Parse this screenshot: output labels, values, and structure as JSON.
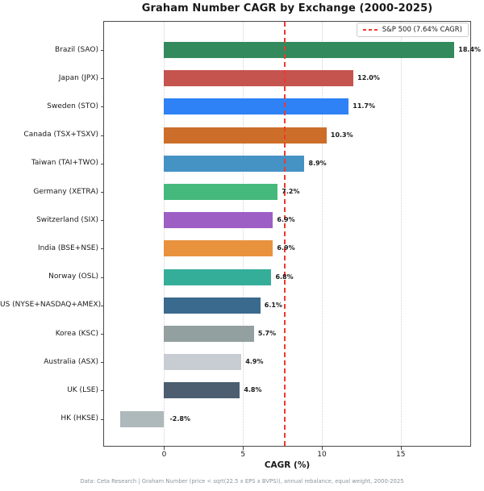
{
  "title": "Graham Number CAGR by Exchange (2000-2025)",
  "footer": "Data: Ceta Research | Graham Number (price < sqrt(22.5 x EPS x BVPS)), annual rebalance, equal weight, 2000-2025",
  "chart_data": {
    "type": "bar",
    "orientation": "horizontal",
    "title": "Graham Number CAGR by Exchange (2000-2025)",
    "xlabel": "CAGR (%)",
    "xlim": [
      -3.86,
      19.46
    ],
    "xticks": [
      0,
      5,
      10,
      15
    ],
    "grid": "vertical-dotted",
    "legend_position": "top-right-inside",
    "legend_label": "S&P 500 (7.64% CAGR)",
    "categories": [
      "Brazil (SAO)",
      "Japan (JPX)",
      "Sweden (STO)",
      "Canada (TSX+TSXV)",
      "Taiwan (TAI+TWO)",
      "Germany (XETRA)",
      "Switzerland (SIX)",
      "India (BSE+NSE)",
      "Norway (OSL)",
      "US (NYSE+NASDAQ+AMEX)",
      "Korea (KSC)",
      "Australia (ASX)",
      "UK (LSE)",
      "HK (HKSE)"
    ],
    "values": [
      18.4,
      12.0,
      11.7,
      10.3,
      8.9,
      7.2,
      6.9,
      6.9,
      6.8,
      6.1,
      5.7,
      4.9,
      4.8,
      -2.8
    ],
    "value_labels": [
      "18.4%",
      "12.0%",
      "11.7%",
      "10.3%",
      "8.9%",
      "7.2%",
      "6.9%",
      "6.9%",
      "6.8%",
      "6.1%",
      "5.7%",
      "4.9%",
      "4.8%",
      "-2.8%"
    ],
    "bar_colors": [
      "#338a5c",
      "#c5544e",
      "#2e82f5",
      "#cc6d29",
      "#4592c5",
      "#45b97c",
      "#9d5fc4",
      "#e9923e",
      "#35ae99",
      "#3a6a8d",
      "#93a0a0",
      "#c7cdd2",
      "#4c5e70",
      "#aeb9bb"
    ],
    "reference_line": {
      "value": 7.64,
      "label": "S&P 500 (7.64% CAGR)",
      "color": "#ee3a2d",
      "style": "dashed"
    }
  }
}
